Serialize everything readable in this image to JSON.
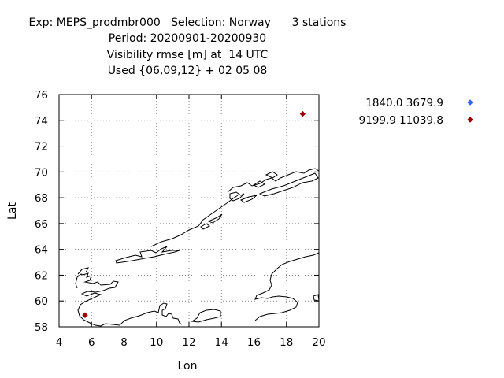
{
  "chart_data": {
    "type": "scatter",
    "title_lines": [
      "Exp: MEPS_prodmbr000   Selection: Norway      3 stations",
      "Period: 20200901-20200930",
      "Visibility rmse [m] at  14 UTC",
      "Used {06,09,12} + 02 05 08"
    ],
    "xlabel": "Lon",
    "ylabel": "Lat",
    "xlim": [
      4,
      20
    ],
    "ylim": [
      58,
      76
    ],
    "xticks": [
      4,
      6,
      8,
      10,
      12,
      14,
      16,
      18,
      20
    ],
    "yticks": [
      58,
      60,
      62,
      64,
      66,
      68,
      70,
      72,
      74,
      76
    ],
    "grid": true,
    "legend_position": "top-right",
    "series": [
      {
        "name": "1840.0 3679.9",
        "color": "#3366ff",
        "points": []
      },
      {
        "name": "9199.9 11039.8",
        "color": "#990000",
        "points": [
          [
            5.6,
            58.9
          ],
          [
            19.0,
            74.5
          ]
        ]
      }
    ]
  }
}
